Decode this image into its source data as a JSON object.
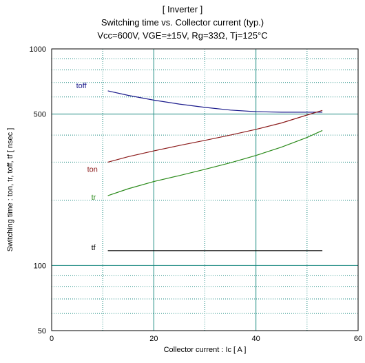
{
  "title": {
    "line1": "[ Inverter ]",
    "line2": "Switching time  vs.  Collector current  (typ.)",
    "line3": "Vcc=600V, VGE=±15V, Rg=33Ω, Tj=125°C"
  },
  "chart_data": {
    "type": "line",
    "xlabel": "Collector current  :  Ic  [ A ]",
    "ylabel": "Switching time  :  ton, tr, toff, tf  [ nsec ]",
    "xlim": [
      0,
      60
    ],
    "ylim": [
      50,
      1000
    ],
    "yscale": "log",
    "grid": true,
    "x_ticks": [
      0,
      20,
      40,
      60
    ],
    "y_ticks": [
      50,
      100,
      500,
      1000
    ],
    "colors": {
      "toff": "#1a1a8c",
      "ton": "#8b1a1a",
      "tr": "#2a8a1a",
      "tf": "#000000",
      "grid": "#1a8a80"
    },
    "series": [
      {
        "name": "toff",
        "x": [
          11,
          15,
          20,
          25,
          30,
          35,
          40,
          45,
          50,
          53
        ],
        "y": [
          640,
          610,
          580,
          556,
          537,
          522,
          513,
          510,
          510,
          510
        ]
      },
      {
        "name": "ton",
        "x": [
          11,
          15,
          20,
          25,
          30,
          35,
          40,
          45,
          50,
          53
        ],
        "y": [
          300,
          318,
          338,
          358,
          378,
          400,
          425,
          455,
          495,
          520
        ]
      },
      {
        "name": "tr",
        "x": [
          11,
          15,
          20,
          25,
          30,
          35,
          40,
          45,
          50,
          53
        ],
        "y": [
          210,
          226,
          244,
          260,
          278,
          298,
          322,
          352,
          390,
          420
        ]
      },
      {
        "name": "tf",
        "x": [
          11,
          53
        ],
        "y": [
          117,
          117
        ]
      }
    ]
  }
}
